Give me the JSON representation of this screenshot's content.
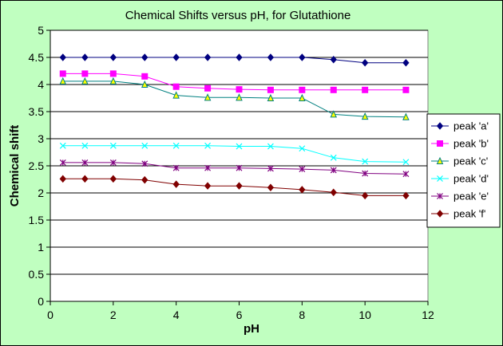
{
  "chart_data": {
    "type": "line",
    "title": "Chemical Shifts versus pH, for Glutathione",
    "xlabel": "pH",
    "ylabel": "Chemical shift",
    "xlim": [
      0,
      12
    ],
    "ylim": [
      0,
      5
    ],
    "xticks": [
      "0",
      "2",
      "4",
      "6",
      "8",
      "10",
      "12"
    ],
    "yticks": [
      "0",
      "0.5",
      "1",
      "1.5",
      "2",
      "2.5",
      "3",
      "3.5",
      "4",
      "4.5",
      "5"
    ],
    "grid": "horizontal major gridlines",
    "legend_position": "right",
    "x": [
      0.4,
      1.1,
      2.0,
      3.0,
      4.0,
      5.0,
      6.0,
      7.0,
      8.0,
      9.0,
      10.0,
      11.3
    ],
    "series": [
      {
        "name": "peak 'a'",
        "color": "#000080",
        "marker": "diamond",
        "values": [
          4.5,
          4.5,
          4.5,
          4.5,
          4.5,
          4.5,
          4.5,
          4.5,
          4.5,
          4.46,
          4.4,
          4.4
        ]
      },
      {
        "name": "peak 'b'",
        "color": "#ff00ff",
        "marker": "square",
        "values": [
          4.2,
          4.2,
          4.2,
          4.15,
          3.96,
          3.93,
          3.91,
          3.9,
          3.9,
          3.9,
          3.9,
          3.9
        ]
      },
      {
        "name": "peak 'c'",
        "color": "#008080",
        "marker": "triangle",
        "marker_fill": "#ffff00",
        "values": [
          4.06,
          4.06,
          4.06,
          4.0,
          3.8,
          3.76,
          3.76,
          3.75,
          3.75,
          3.45,
          3.41,
          3.4
        ]
      },
      {
        "name": "peak 'd'",
        "color": "#00ffff",
        "marker": "x",
        "values": [
          2.87,
          2.87,
          2.87,
          2.87,
          2.87,
          2.87,
          2.86,
          2.86,
          2.82,
          2.65,
          2.58,
          2.57
        ]
      },
      {
        "name": "peak 'e'",
        "color": "#800080",
        "marker": "star",
        "values": [
          2.56,
          2.56,
          2.56,
          2.54,
          2.46,
          2.46,
          2.46,
          2.45,
          2.44,
          2.42,
          2.36,
          2.35
        ]
      },
      {
        "name": "peak 'f'",
        "color": "#800000",
        "marker": "diamond",
        "values": [
          2.26,
          2.26,
          2.26,
          2.24,
          2.16,
          2.13,
          2.13,
          2.1,
          2.06,
          2.01,
          1.95,
          1.95
        ]
      }
    ]
  },
  "colors": {
    "chart_area_bg": "#c0ffc0",
    "plot_area_bg": "#ffffff"
  }
}
